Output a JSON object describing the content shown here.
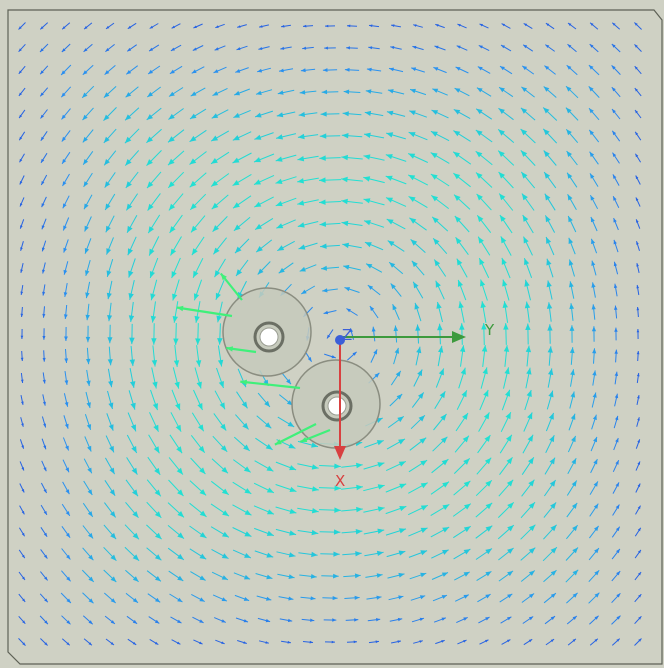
{
  "colors": {
    "background": "#cfd1c4",
    "domain_edge": "#5e6156",
    "vector_slow": "#2436d6",
    "vector_mid": "#2a8ff0",
    "vector_fast": "#22e0d2",
    "vector_peak": "#3ff07a",
    "rotor_fill": "#c6cabc",
    "rotor_edge": "#8a8d80",
    "shaft_ring": "#6b6f64",
    "x_axis": "#d84040",
    "y_axis": "#3d9a3d",
    "z_axis": "#3b5fd8"
  },
  "triad": {
    "x_label": "X",
    "y_label": "Y",
    "z_label": "Z"
  }
}
